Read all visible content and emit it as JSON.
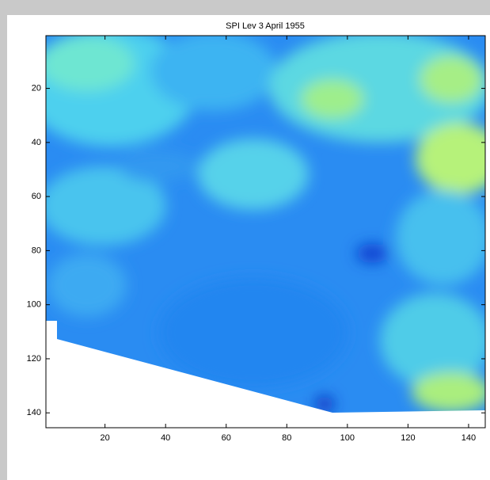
{
  "chart_data": {
    "type": "image",
    "title": "SPI Lev 3 April 1955",
    "xlim": [
      0.5,
      145.5
    ],
    "xticks": [
      20,
      40,
      60,
      80,
      100,
      120,
      140
    ],
    "ylim": [
      0.5,
      145.5
    ],
    "yticks": [
      20,
      40,
      60,
      80,
      100,
      120,
      140
    ],
    "y_reversed": true
  }
}
